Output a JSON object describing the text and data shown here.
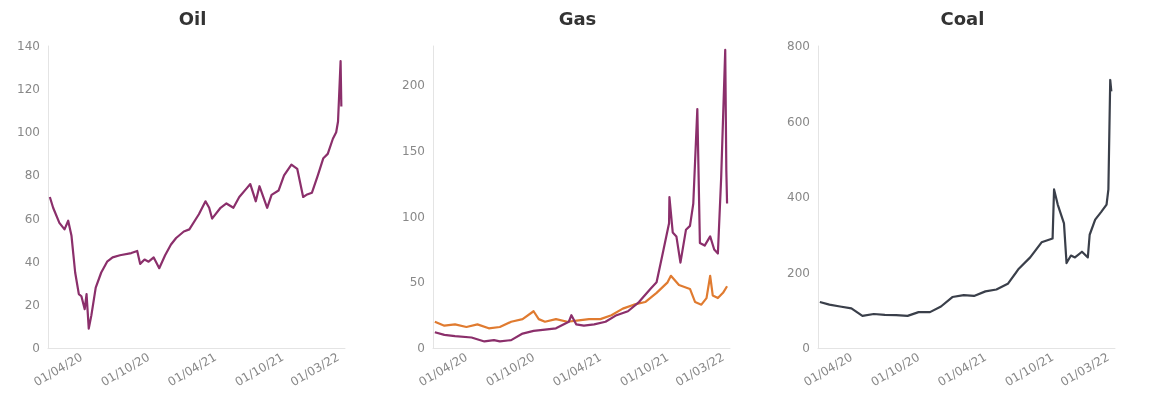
{
  "chart_data": [
    {
      "type": "line",
      "title": "Oil",
      "xlim": [
        "2020-01-01",
        "2022-03-20"
      ],
      "xticks": [
        {
          "value": "2020-04-01",
          "label": "01/04/20"
        },
        {
          "value": "2020-10-01",
          "label": "01/10/20"
        },
        {
          "value": "2021-04-01",
          "label": "01/04/21"
        },
        {
          "value": "2021-10-01",
          "label": "01/10/21"
        },
        {
          "value": "2022-03-01",
          "label": "01/03/22"
        }
      ],
      "ylim": [
        0,
        140
      ],
      "yticks": [
        0,
        20,
        40,
        60,
        80,
        100,
        120,
        140
      ],
      "series": [
        {
          "color": "#8b2f6b",
          "x": [
            "2020-01-06",
            "2020-01-15",
            "2020-02-01",
            "2020-02-15",
            "2020-02-25",
            "2020-03-05",
            "2020-03-15",
            "2020-03-25",
            "2020-04-01",
            "2020-04-10",
            "2020-04-15",
            "2020-04-21",
            "2020-04-28",
            "2020-05-10",
            "2020-05-25",
            "2020-06-10",
            "2020-06-25",
            "2020-07-15",
            "2020-08-15",
            "2020-08-31",
            "2020-09-08",
            "2020-09-20",
            "2020-10-01",
            "2020-10-15",
            "2020-10-30",
            "2020-11-15",
            "2020-12-01",
            "2020-12-15",
            "2021-01-05",
            "2021-01-20",
            "2021-02-15",
            "2021-03-05",
            "2021-03-15",
            "2021-03-23",
            "2021-04-15",
            "2021-05-01",
            "2021-05-20",
            "2021-06-05",
            "2021-06-25",
            "2021-07-05",
            "2021-07-20",
            "2021-07-30",
            "2021-08-20",
            "2021-09-01",
            "2021-09-20",
            "2021-10-05",
            "2021-10-25",
            "2021-11-10",
            "2021-11-26",
            "2021-12-05",
            "2021-12-20",
            "2022-01-05",
            "2022-01-20",
            "2022-02-01",
            "2022-02-15",
            "2022-02-24",
            "2022-03-01",
            "2022-03-08",
            "2022-03-10"
          ],
          "values": [
            70,
            65,
            58,
            55,
            59,
            52,
            35,
            25,
            24,
            18,
            25,
            9,
            15,
            28,
            35,
            40,
            42,
            43,
            44,
            45,
            39,
            41,
            40,
            42,
            37,
            43,
            48,
            51,
            54,
            55,
            62,
            68,
            65,
            60,
            65,
            67,
            65,
            70,
            74,
            76,
            68,
            75,
            65,
            71,
            73,
            80,
            85,
            83,
            70,
            71,
            72,
            80,
            88,
            90,
            97,
            100,
            105,
            133,
            112
          ]
        }
      ]
    },
    {
      "type": "line",
      "title": "Gas",
      "xlim": [
        "2020-01-01",
        "2022-03-20"
      ],
      "xticks": [
        {
          "value": "2020-04-01",
          "label": "01/04/20"
        },
        {
          "value": "2020-10-01",
          "label": "01/10/20"
        },
        {
          "value": "2021-04-01",
          "label": "01/04/21"
        },
        {
          "value": "2021-10-01",
          "label": "01/10/21"
        },
        {
          "value": "2022-03-01",
          "label": "01/03/22"
        }
      ],
      "ylim": [
        0,
        230
      ],
      "yticks": [
        0,
        50,
        100,
        150,
        200
      ],
      "series": [
        {
          "color": "#e07b30",
          "x": [
            "2020-01-06",
            "2020-02-01",
            "2020-03-01",
            "2020-04-01",
            "2020-05-01",
            "2020-06-01",
            "2020-07-01",
            "2020-08-01",
            "2020-09-01",
            "2020-10-01",
            "2020-10-15",
            "2020-11-01",
            "2020-12-01",
            "2021-01-01",
            "2021-02-01",
            "2021-03-01",
            "2021-04-01",
            "2021-05-01",
            "2021-06-01",
            "2021-07-01",
            "2021-08-01",
            "2021-09-01",
            "2021-10-01",
            "2021-10-10",
            "2021-11-01",
            "2021-12-01",
            "2021-12-15",
            "2022-01-01",
            "2022-01-15",
            "2022-01-25",
            "2022-02-01",
            "2022-02-15",
            "2022-03-01",
            "2022-03-12"
          ],
          "values": [
            20,
            17,
            18,
            16,
            18,
            15,
            16,
            20,
            22,
            28,
            22,
            20,
            22,
            20,
            21,
            22,
            22,
            25,
            30,
            33,
            35,
            42,
            50,
            55,
            48,
            45,
            35,
            33,
            38,
            55,
            40,
            38,
            42,
            47
          ]
        },
        {
          "color": "#8b2f6b",
          "x": [
            "2020-01-06",
            "2020-02-01",
            "2020-03-01",
            "2020-04-15",
            "2020-05-20",
            "2020-06-15",
            "2020-07-01",
            "2020-08-01",
            "2020-09-01",
            "2020-10-01",
            "2020-11-01",
            "2020-12-01",
            "2021-01-05",
            "2021-01-12",
            "2021-01-25",
            "2021-02-15",
            "2021-03-15",
            "2021-04-15",
            "2021-05-15",
            "2021-06-15",
            "2021-07-15",
            "2021-08-15",
            "2021-09-01",
            "2021-09-20",
            "2021-10-05",
            "2021-10-06",
            "2021-10-15",
            "2021-10-25",
            "2021-11-05",
            "2021-11-20",
            "2021-12-01",
            "2021-12-10",
            "2021-12-21",
            "2021-12-28",
            "2022-01-10",
            "2022-01-25",
            "2022-02-05",
            "2022-02-15",
            "2022-02-24",
            "2022-03-07",
            "2022-03-10",
            "2022-03-12"
          ],
          "values": [
            12,
            10,
            9,
            8,
            5,
            6,
            5,
            6,
            11,
            13,
            14,
            15,
            20,
            25,
            18,
            17,
            18,
            20,
            25,
            28,
            35,
            45,
            50,
            75,
            95,
            115,
            88,
            85,
            65,
            90,
            93,
            110,
            182,
            80,
            78,
            85,
            75,
            72,
            130,
            227,
            135,
            110
          ]
        }
      ]
    },
    {
      "type": "line",
      "title": "Coal",
      "xlim": [
        "2020-01-01",
        "2022-03-20"
      ],
      "xticks": [
        {
          "value": "2020-04-01",
          "label": "01/04/20"
        },
        {
          "value": "2020-10-01",
          "label": "01/10/20"
        },
        {
          "value": "2021-04-01",
          "label": "01/04/21"
        },
        {
          "value": "2021-10-01",
          "label": "01/10/21"
        },
        {
          "value": "2022-03-01",
          "label": "01/03/22"
        }
      ],
      "ylim": [
        0,
        800
      ],
      "yticks": [
        0,
        200,
        400,
        600,
        800
      ],
      "series": [
        {
          "color": "#3a3f4a",
          "x": [
            "2020-01-06",
            "2020-02-01",
            "2020-03-01",
            "2020-04-01",
            "2020-05-01",
            "2020-06-01",
            "2020-07-01",
            "2020-08-01",
            "2020-09-01",
            "2020-10-01",
            "2020-11-01",
            "2020-12-01",
            "2021-01-01",
            "2021-02-01",
            "2021-03-01",
            "2021-04-01",
            "2021-05-01",
            "2021-06-01",
            "2021-07-01",
            "2021-08-01",
            "2021-09-01",
            "2021-10-01",
            "2021-10-05",
            "2021-10-15",
            "2021-11-01",
            "2021-11-08",
            "2021-11-20",
            "2021-12-01",
            "2021-12-20",
            "2022-01-05",
            "2022-01-10",
            "2022-01-25",
            "2022-02-10",
            "2022-02-25",
            "2022-03-02",
            "2022-03-07",
            "2022-03-10"
          ],
          "values": [
            122,
            115,
            110,
            105,
            85,
            90,
            88,
            87,
            85,
            95,
            95,
            110,
            135,
            140,
            138,
            150,
            155,
            170,
            210,
            240,
            280,
            290,
            420,
            380,
            330,
            225,
            245,
            240,
            255,
            240,
            300,
            340,
            360,
            380,
            420,
            710,
            680
          ]
        }
      ]
    }
  ]
}
